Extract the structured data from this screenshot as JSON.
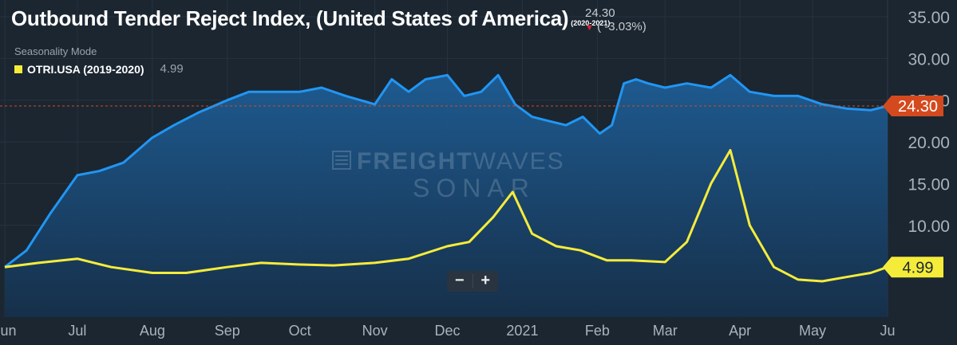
{
  "title": "Outbound Tender Reject Index, (United States of America)",
  "title_period": "(2020-2021)",
  "current": {
    "value": "24.30",
    "change": "( -3.03%)",
    "direction": "down"
  },
  "seasonality_label": "Seasonality Mode",
  "watermark": {
    "line1_bold": "FREIGHT",
    "line1_light": "WAVES",
    "line2": "SONAR"
  },
  "zoom": {
    "minus": "−",
    "plus": "+"
  },
  "legend": {
    "label": "OTRI.USA (2019-2020)",
    "value": "4.99"
  },
  "colors": {
    "background": "#1b2631",
    "primary": "#2196f3",
    "seasonal": "#f5ec3a",
    "current_tag": "#d44a1f"
  },
  "chart_data": {
    "type": "area",
    "title": "Outbound Tender Reject Index, (United States of America)",
    "x_ticks": [
      "Jun",
      "Jul",
      "Aug",
      "Sep",
      "Oct",
      "Nov",
      "Dec",
      "2021",
      "Feb",
      "Mar",
      "Apr",
      "May",
      "Ju"
    ],
    "y_ticks": [
      "35.00",
      "30.00",
      "25.00",
      "20.00",
      "15.00",
      "10.00"
    ],
    "ylim": [
      -1,
      37
    ],
    "grid": true,
    "y_axis_position": "right",
    "current_value_tag": "24.30",
    "seasonal_value_tag": "4.99",
    "series": [
      {
        "name": "2020-2021",
        "style": "area",
        "x": [
          "2020-06-01",
          "2020-06-10",
          "2020-06-20",
          "2020-07-01",
          "2020-07-10",
          "2020-07-20",
          "2020-08-01",
          "2020-08-10",
          "2020-08-20",
          "2020-09-01",
          "2020-09-10",
          "2020-09-20",
          "2020-10-01",
          "2020-10-10",
          "2020-10-20",
          "2020-11-01",
          "2020-11-08",
          "2020-11-15",
          "2020-11-22",
          "2020-12-01",
          "2020-12-08",
          "2020-12-15",
          "2020-12-22",
          "2020-12-29",
          "2021-01-05",
          "2021-01-12",
          "2021-01-19",
          "2021-01-26",
          "2021-02-02",
          "2021-02-07",
          "2021-02-12",
          "2021-02-17",
          "2021-02-22",
          "2021-03-01",
          "2021-03-10",
          "2021-03-20",
          "2021-03-28",
          "2021-04-05",
          "2021-04-15",
          "2021-04-25",
          "2021-05-05",
          "2021-05-15",
          "2021-05-25",
          "2021-06-01"
        ],
        "values": [
          5.0,
          7.0,
          11.5,
          16.0,
          16.5,
          17.5,
          20.5,
          22.0,
          23.5,
          25.0,
          26.0,
          26.0,
          26.0,
          26.5,
          25.5,
          24.5,
          27.5,
          26.0,
          27.5,
          28.0,
          25.5,
          26.0,
          28.0,
          24.5,
          23.0,
          22.5,
          22.0,
          23.0,
          21.0,
          22.0,
          27.0,
          27.5,
          27.0,
          26.5,
          27.0,
          26.5,
          28.0,
          26.0,
          25.5,
          25.5,
          24.5,
          24.0,
          23.8,
          24.3
        ]
      },
      {
        "name": "OTRI.USA (2019-2020)",
        "style": "line",
        "x": [
          "2020-06-01",
          "2020-06-15",
          "2020-07-01",
          "2020-07-15",
          "2020-08-01",
          "2020-08-15",
          "2020-09-01",
          "2020-09-15",
          "2020-10-01",
          "2020-10-15",
          "2020-11-01",
          "2020-11-15",
          "2020-12-01",
          "2020-12-10",
          "2020-12-20",
          "2020-12-28",
          "2021-01-05",
          "2021-01-15",
          "2021-01-25",
          "2021-02-05",
          "2021-02-15",
          "2021-03-01",
          "2021-03-10",
          "2021-03-20",
          "2021-03-28",
          "2021-04-05",
          "2021-04-15",
          "2021-04-25",
          "2021-05-05",
          "2021-05-15",
          "2021-05-25",
          "2021-06-01"
        ],
        "values": [
          5.0,
          5.5,
          6.0,
          5.0,
          4.3,
          4.3,
          5.0,
          5.5,
          5.3,
          5.2,
          5.5,
          6.0,
          7.5,
          8.0,
          11.0,
          14.0,
          9.0,
          7.5,
          7.0,
          5.8,
          5.8,
          5.6,
          8.0,
          15.0,
          19.0,
          10.0,
          5.0,
          3.5,
          3.3,
          3.8,
          4.3,
          5.0
        ]
      }
    ]
  }
}
